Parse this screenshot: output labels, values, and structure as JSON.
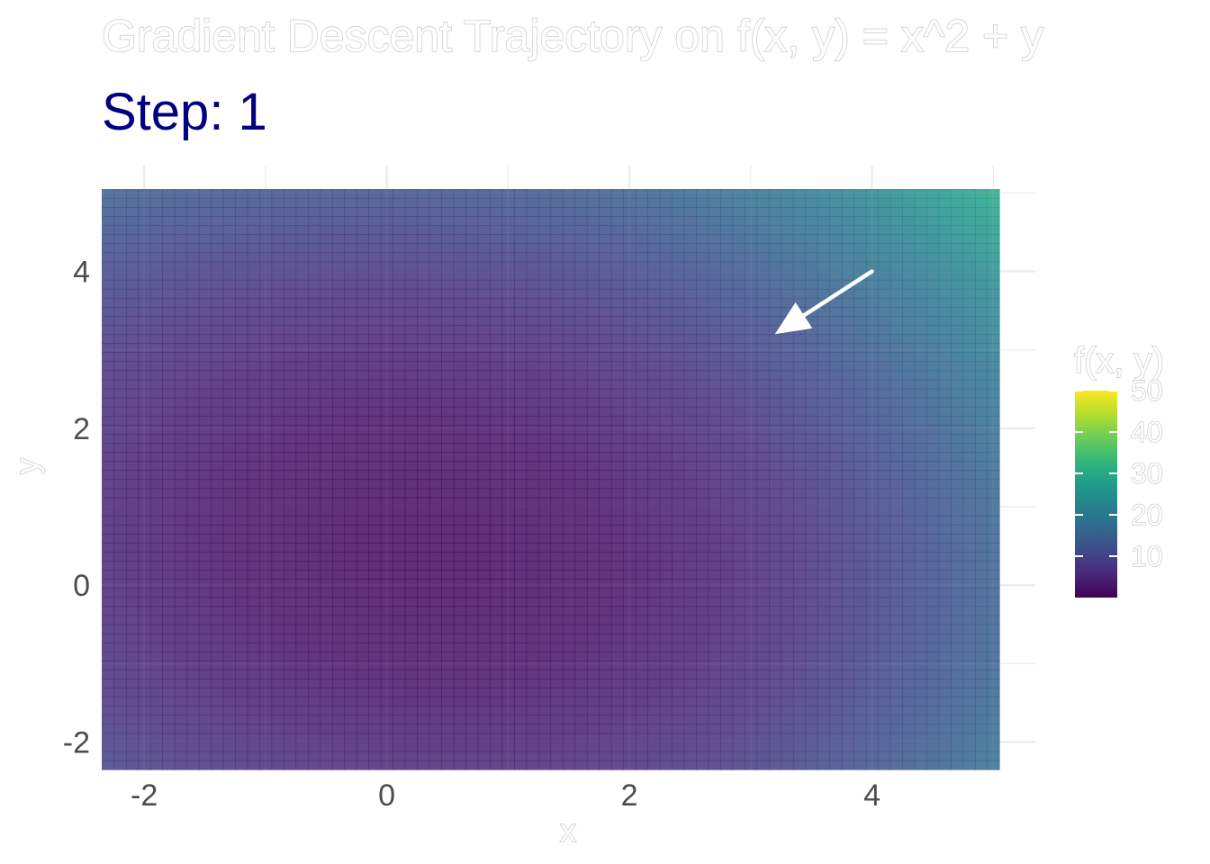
{
  "chart_data": {
    "type": "heatmap",
    "title": "Gradient Descent Trajectory on f(x, y) = x^2 + y",
    "subtitle": "Step: 1",
    "xlabel": "x",
    "ylabel": "y",
    "xlim": [
      -2.35,
      5.05
    ],
    "ylim": [
      -2.35,
      5.05
    ],
    "x_ticks": [
      -2,
      0,
      2,
      4
    ],
    "y_ticks": [
      -2,
      0,
      2,
      4
    ],
    "x_tick_labels": [
      "-2",
      "0",
      "2",
      "4"
    ],
    "y_tick_labels": [
      "-2",
      "0",
      "2",
      "4"
    ],
    "grid": true,
    "surface": {
      "function": "f(x, y)",
      "value_range": [
        0,
        50
      ],
      "colormap": "viridis",
      "fill_alpha": 0.85
    },
    "legend": {
      "title": "f(x, y)",
      "placement": "right",
      "range": [
        0,
        50
      ],
      "ticks": [
        10,
        20,
        30,
        40,
        50
      ],
      "tick_labels": [
        "10",
        "20",
        "30",
        "40",
        "50"
      ]
    },
    "arrows": [
      {
        "from": [
          4.0,
          4.0
        ],
        "to": [
          3.2,
          3.2
        ],
        "color": "#ffffff"
      }
    ],
    "colors": {
      "subtitle": "#000080",
      "grid": "#ebebeb",
      "arrow": "#ffffff",
      "tick_text": "#4d4d4d"
    }
  }
}
